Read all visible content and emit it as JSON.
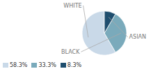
{
  "chart_data": {
    "type": "pie",
    "categories": [
      "WHITE",
      "BLACK",
      "ASIAN"
    ],
    "values": [
      58.3,
      33.3,
      8.3
    ],
    "value_labels": [
      "58.3%",
      "33.3%",
      "8.3%"
    ],
    "colors": [
      "#c9d9e8",
      "#7aaabb",
      "#1f4e6e"
    ],
    "legend": "lower left"
  }
}
